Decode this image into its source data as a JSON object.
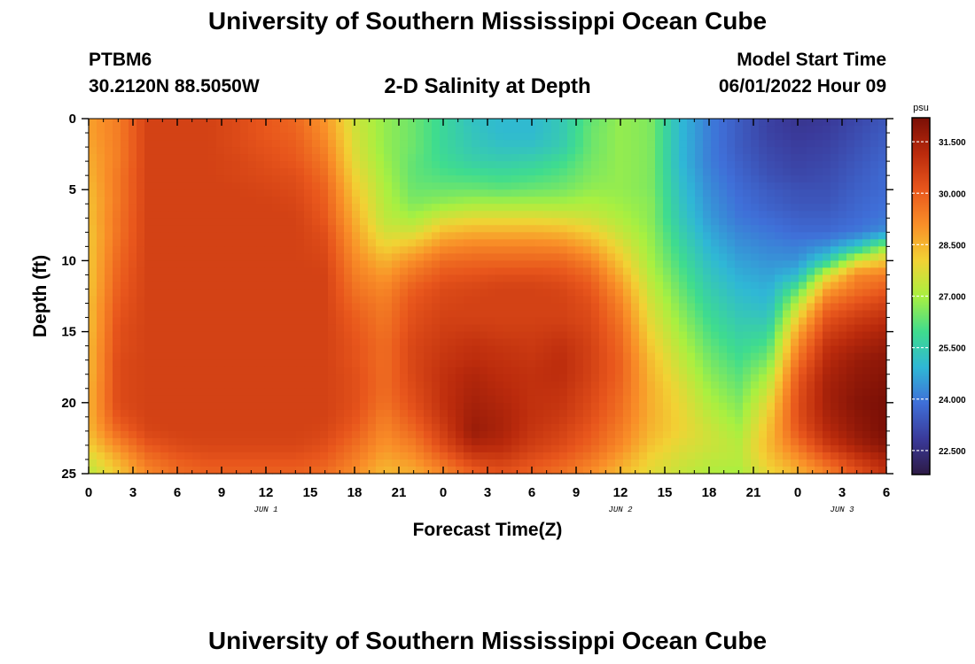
{
  "header": {
    "title": "University of Southern Mississippi Ocean Cube",
    "station": "PTBM6",
    "coords": "30.2120N  88.5050W",
    "subtitle": "2-D Salinity at Depth",
    "model_start_label": "Model Start Time",
    "model_start_value": "06/01/2022 Hour 09"
  },
  "footer": {
    "title": "University of Southern Mississippi Ocean Cube"
  },
  "chart_data": {
    "type": "heatmap",
    "title": "2-D Salinity at Depth",
    "xlabel": "Forecast Time(Z)",
    "ylabel": "Depth (ft)",
    "x_hours_range": [
      0,
      54
    ],
    "y_range": [
      0,
      25
    ],
    "x_ticks": [
      {
        "hour": 0,
        "label": "0"
      },
      {
        "hour": 3,
        "label": "3"
      },
      {
        "hour": 6,
        "label": "6"
      },
      {
        "hour": 9,
        "label": "9"
      },
      {
        "hour": 12,
        "label": "12"
      },
      {
        "hour": 15,
        "label": "15"
      },
      {
        "hour": 18,
        "label": "18"
      },
      {
        "hour": 21,
        "label": "21"
      },
      {
        "hour": 24,
        "label": "0"
      },
      {
        "hour": 27,
        "label": "3"
      },
      {
        "hour": 30,
        "label": "6"
      },
      {
        "hour": 33,
        "label": "9"
      },
      {
        "hour": 36,
        "label": "12"
      },
      {
        "hour": 39,
        "label": "15"
      },
      {
        "hour": 42,
        "label": "18"
      },
      {
        "hour": 45,
        "label": "21"
      },
      {
        "hour": 48,
        "label": "0"
      },
      {
        "hour": 51,
        "label": "3"
      },
      {
        "hour": 54,
        "label": "6"
      }
    ],
    "y_ticks": [
      {
        "depth": 0,
        "label": "0"
      },
      {
        "depth": 5,
        "label": "5"
      },
      {
        "depth": 10,
        "label": "10"
      },
      {
        "depth": 15,
        "label": "15"
      },
      {
        "depth": 20,
        "label": "20"
      },
      {
        "depth": 25,
        "label": "25"
      }
    ],
    "day_labels": [
      {
        "hour": 12,
        "label": "JUN 1"
      },
      {
        "hour": 36,
        "label": "JUN 2"
      },
      {
        "hour": 51,
        "label": "JUN 3"
      }
    ],
    "colorbar": {
      "unit": "psu",
      "range": [
        21.8,
        32.2
      ],
      "ticks": [
        {
          "value": 22.5,
          "label": "22.500"
        },
        {
          "value": 24.0,
          "label": "24.000"
        },
        {
          "value": 25.5,
          "label": "25.500"
        },
        {
          "value": 27.0,
          "label": "27.000"
        },
        {
          "value": 28.5,
          "label": "28.500"
        },
        {
          "value": 30.0,
          "label": "30.000"
        },
        {
          "value": 31.5,
          "label": "31.500"
        }
      ]
    },
    "colors": {
      "scale": [
        "#2d1a45",
        "#3a3a9a",
        "#3f6fd8",
        "#2fb7d6",
        "#3fdc8e",
        "#a9f040",
        "#f2d234",
        "#f98f28",
        "#e8561c",
        "#ba2a0c",
        "#7a0f06"
      ]
    },
    "grid": {
      "rows": 26,
      "row_depths_ft": [
        0,
        1,
        2,
        3,
        4,
        5,
        6,
        7,
        8,
        9,
        10,
        11,
        12,
        13,
        14,
        15,
        16,
        17,
        18,
        19,
        20,
        21,
        22,
        23,
        24,
        25
      ],
      "cols": 28,
      "col_hours": [
        0,
        2,
        4,
        6,
        8,
        10,
        12,
        14,
        16,
        18,
        20,
        22,
        24,
        26,
        28,
        30,
        32,
        34,
        36,
        38,
        40,
        42,
        44,
        46,
        48,
        50,
        52,
        54
      ],
      "values_psu": [
        [
          28.8,
          29.4,
          30.6,
          30.6,
          30.6,
          30.4,
          30.1,
          29.8,
          29.0,
          27.5,
          26.8,
          26.4,
          25.8,
          25.2,
          25.0,
          25.0,
          25.4,
          26.3,
          26.8,
          26.6,
          25.0,
          24.1,
          23.5,
          23.0,
          22.7,
          22.8,
          23.1,
          23.4
        ],
        [
          28.8,
          29.4,
          30.6,
          30.6,
          30.6,
          30.4,
          30.1,
          29.9,
          29.1,
          27.6,
          26.8,
          26.4,
          25.8,
          25.3,
          25.0,
          25.0,
          25.4,
          26.4,
          26.8,
          26.6,
          25.0,
          24.1,
          23.5,
          23.0,
          22.8,
          22.9,
          23.2,
          23.5
        ],
        [
          28.7,
          29.4,
          30.6,
          30.6,
          30.6,
          30.4,
          30.2,
          30.0,
          29.3,
          27.7,
          26.8,
          26.4,
          25.8,
          25.4,
          25.2,
          25.2,
          25.5,
          26.4,
          26.8,
          26.6,
          25.0,
          24.1,
          23.5,
          23.1,
          22.9,
          23.0,
          23.3,
          23.6
        ],
        [
          28.6,
          29.4,
          30.6,
          30.6,
          30.6,
          30.5,
          30.3,
          30.1,
          29.5,
          27.8,
          26.9,
          26.3,
          25.9,
          25.6,
          25.5,
          25.6,
          25.9,
          26.5,
          26.8,
          26.6,
          25.0,
          24.1,
          23.6,
          23.2,
          23.0,
          23.1,
          23.4,
          23.7
        ],
        [
          28.5,
          29.5,
          30.6,
          30.6,
          30.6,
          30.5,
          30.4,
          30.3,
          29.7,
          28.0,
          27.0,
          26.3,
          26.1,
          26.0,
          25.9,
          26.0,
          26.2,
          26.6,
          26.8,
          26.6,
          25.1,
          24.2,
          23.7,
          23.3,
          23.1,
          23.2,
          23.5,
          23.8
        ],
        [
          28.4,
          29.5,
          30.6,
          30.6,
          30.6,
          30.6,
          30.5,
          30.4,
          29.9,
          28.2,
          27.1,
          26.4,
          26.4,
          26.4,
          26.3,
          26.4,
          26.5,
          26.8,
          26.8,
          26.6,
          25.2,
          24.3,
          23.8,
          23.5,
          23.3,
          23.3,
          23.6,
          23.8
        ],
        [
          28.3,
          29.5,
          30.6,
          30.6,
          30.6,
          30.6,
          30.6,
          30.5,
          30.0,
          28.4,
          27.2,
          26.6,
          26.8,
          27.0,
          27.0,
          27.0,
          27.0,
          27.1,
          26.9,
          26.7,
          25.3,
          24.4,
          23.9,
          23.6,
          23.4,
          23.4,
          23.7,
          23.9
        ],
        [
          28.3,
          29.6,
          30.6,
          30.6,
          30.6,
          30.6,
          30.6,
          30.6,
          30.1,
          28.6,
          27.3,
          27.0,
          27.6,
          27.8,
          27.8,
          27.8,
          27.7,
          27.5,
          27.1,
          26.7,
          25.4,
          24.5,
          24.0,
          23.8,
          23.6,
          23.6,
          23.8,
          24.0
        ],
        [
          28.2,
          29.6,
          30.6,
          30.6,
          30.6,
          30.6,
          30.6,
          30.6,
          30.3,
          28.8,
          27.6,
          27.6,
          28.4,
          28.6,
          28.6,
          28.6,
          28.5,
          28.1,
          27.4,
          26.8,
          25.6,
          24.7,
          24.2,
          24.0,
          23.8,
          23.8,
          24.0,
          24.4
        ],
        [
          28.2,
          29.7,
          30.6,
          30.6,
          30.6,
          30.6,
          30.6,
          30.6,
          30.4,
          29.0,
          28.0,
          28.4,
          29.1,
          29.3,
          29.3,
          29.3,
          29.2,
          28.7,
          27.8,
          26.9,
          25.8,
          24.9,
          24.4,
          24.2,
          24.1,
          24.4,
          25.2,
          26.8
        ],
        [
          28.2,
          29.8,
          30.6,
          30.6,
          30.6,
          30.6,
          30.6,
          30.6,
          30.5,
          29.2,
          28.5,
          29.1,
          29.7,
          29.8,
          29.8,
          29.8,
          29.8,
          29.3,
          28.2,
          27.0,
          26.0,
          25.1,
          24.6,
          24.4,
          24.4,
          25.5,
          27.5,
          28.2
        ],
        [
          28.2,
          29.9,
          30.6,
          30.6,
          30.6,
          30.6,
          30.6,
          30.6,
          30.6,
          29.4,
          28.9,
          29.6,
          30.1,
          30.2,
          30.3,
          30.3,
          30.2,
          29.8,
          28.6,
          27.2,
          26.2,
          25.3,
          24.8,
          24.6,
          25.0,
          27.6,
          29.2,
          29.4
        ],
        [
          28.2,
          30.0,
          30.6,
          30.6,
          30.6,
          30.6,
          30.6,
          30.6,
          30.6,
          29.6,
          29.2,
          30.0,
          30.4,
          30.5,
          30.6,
          30.6,
          30.5,
          30.1,
          29.0,
          27.4,
          26.4,
          25.5,
          25.0,
          24.8,
          26.2,
          28.8,
          29.6,
          30.0
        ],
        [
          28.3,
          30.1,
          30.6,
          30.6,
          30.6,
          30.6,
          30.6,
          30.6,
          30.6,
          29.8,
          29.4,
          30.2,
          30.5,
          30.6,
          30.6,
          30.6,
          30.6,
          30.3,
          29.3,
          27.6,
          26.6,
          25.7,
          25.2,
          25.0,
          27.2,
          29.6,
          30.2,
          30.6
        ],
        [
          28.3,
          30.2,
          30.6,
          30.6,
          30.6,
          30.6,
          30.6,
          30.6,
          30.6,
          30.0,
          29.5,
          30.3,
          30.6,
          30.6,
          30.6,
          30.6,
          30.6,
          30.4,
          29.5,
          27.8,
          26.8,
          25.9,
          25.4,
          25.3,
          28.0,
          30.2,
          30.7,
          31.0
        ],
        [
          28.3,
          30.3,
          30.6,
          30.6,
          30.6,
          30.6,
          30.6,
          30.6,
          30.6,
          30.1,
          29.6,
          30.4,
          30.7,
          30.8,
          30.7,
          30.7,
          30.8,
          30.5,
          29.7,
          28.0,
          27.0,
          26.1,
          25.6,
          25.7,
          28.7,
          30.6,
          31.1,
          31.4
        ],
        [
          28.4,
          30.3,
          30.6,
          30.6,
          30.6,
          30.6,
          30.6,
          30.6,
          30.6,
          30.2,
          29.7,
          30.5,
          30.8,
          31.0,
          30.9,
          30.8,
          31.0,
          30.6,
          29.8,
          28.2,
          27.2,
          26.3,
          25.8,
          26.1,
          29.2,
          31.0,
          31.4,
          31.7
        ],
        [
          28.4,
          30.4,
          30.6,
          30.6,
          30.6,
          30.6,
          30.6,
          30.6,
          30.6,
          30.2,
          29.7,
          30.5,
          30.9,
          31.1,
          31.0,
          30.9,
          31.1,
          30.6,
          29.9,
          28.4,
          27.4,
          26.5,
          26.0,
          26.5,
          29.6,
          31.2,
          31.7,
          31.9
        ],
        [
          28.4,
          30.4,
          30.6,
          30.6,
          30.6,
          30.6,
          30.6,
          30.6,
          30.6,
          30.3,
          29.7,
          30.5,
          31.0,
          31.3,
          31.1,
          31.0,
          31.1,
          30.6,
          29.9,
          28.5,
          27.6,
          26.7,
          26.2,
          27.0,
          30.0,
          31.4,
          31.8,
          32.0
        ],
        [
          28.5,
          30.4,
          30.6,
          30.6,
          30.6,
          30.6,
          30.6,
          30.6,
          30.6,
          30.3,
          29.7,
          30.4,
          31.0,
          31.4,
          31.2,
          31.0,
          31.0,
          30.5,
          29.8,
          28.6,
          27.8,
          26.9,
          26.4,
          27.4,
          30.2,
          31.5,
          31.9,
          32.1
        ],
        [
          28.5,
          30.4,
          30.6,
          30.6,
          30.6,
          30.6,
          30.6,
          30.6,
          30.6,
          30.3,
          29.6,
          30.3,
          31.0,
          31.5,
          31.3,
          31.0,
          30.9,
          30.4,
          29.7,
          28.6,
          27.9,
          27.1,
          26.6,
          27.8,
          30.3,
          31.5,
          32.0,
          32.2
        ],
        [
          28.5,
          30.2,
          30.6,
          30.6,
          30.6,
          30.6,
          30.6,
          30.6,
          30.6,
          30.2,
          29.4,
          30.1,
          30.9,
          31.6,
          31.4,
          31.0,
          30.8,
          30.3,
          29.6,
          28.6,
          28.0,
          27.3,
          26.8,
          28.1,
          30.3,
          31.4,
          31.9,
          32.2
        ],
        [
          28.4,
          29.8,
          30.5,
          30.6,
          30.6,
          30.6,
          30.6,
          30.6,
          30.5,
          30.0,
          29.2,
          29.8,
          30.7,
          31.7,
          31.4,
          30.9,
          30.6,
          30.1,
          29.4,
          28.5,
          28.0,
          27.5,
          27.0,
          28.3,
          30.1,
          31.2,
          31.8,
          32.2
        ],
        [
          28.1,
          29.2,
          30.1,
          30.4,
          30.5,
          30.5,
          30.5,
          30.5,
          30.3,
          29.7,
          29.0,
          29.4,
          30.4,
          31.3,
          31.2,
          30.7,
          30.4,
          29.9,
          29.2,
          28.3,
          27.8,
          27.5,
          27.2,
          28.4,
          29.6,
          30.8,
          31.5,
          32.0
        ],
        [
          27.6,
          28.6,
          29.6,
          30.0,
          30.2,
          30.2,
          30.2,
          30.2,
          30.0,
          29.4,
          28.7,
          29.0,
          29.8,
          30.6,
          30.7,
          30.3,
          30.0,
          29.5,
          28.8,
          28.0,
          27.6,
          27.3,
          27.2,
          28.2,
          29.0,
          30.0,
          30.8,
          31.4
        ],
        [
          27.2,
          28.2,
          29.2,
          29.7,
          29.9,
          29.9,
          29.9,
          29.9,
          29.7,
          29.1,
          28.4,
          28.6,
          29.2,
          29.9,
          30.2,
          29.9,
          29.6,
          29.1,
          28.4,
          27.8,
          27.4,
          27.1,
          27.0,
          27.9,
          28.5,
          29.3,
          30.2,
          31.0
        ]
      ]
    }
  }
}
